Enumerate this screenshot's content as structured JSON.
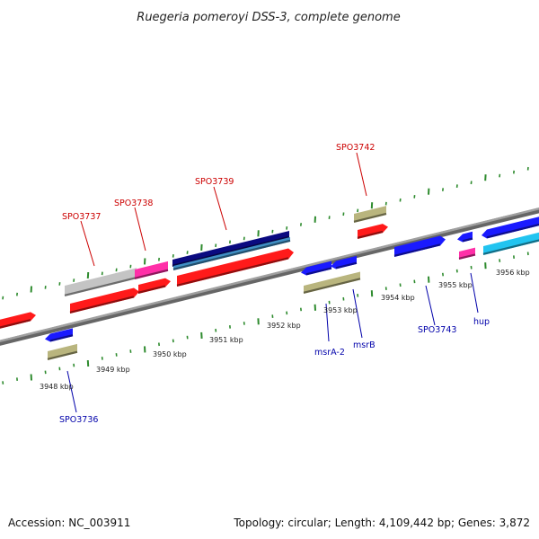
{
  "title": "Ruegeria pomeroyi DSS-3, complete genome",
  "footer": {
    "accession": "Accession: NC_003911",
    "summary": "Topology: circular; Length: 4,109,442 bp; Genes: 3,872"
  },
  "colors": {
    "backbone": "#8c8c8c",
    "tick": "#2e8b2e",
    "red": "#ff1a1a",
    "blue": "#1a1aff",
    "navy": "#0a0a80",
    "steel": "#3f8fc4",
    "grey": "#c4c4c4",
    "magenta": "#ff2fa8",
    "olive": "#b9b57e",
    "cyan": "#22c4f0",
    "label_red": "#cc0000",
    "label_blue": "#0000aa"
  },
  "scale_ticks": [
    "3948 kbp",
    "3949 kbp",
    "3950 kbp",
    "3951 kbp",
    "3952 kbp",
    "3953 kbp",
    "3954 kbp",
    "3955 kbp",
    "3956 kbp"
  ],
  "gene_labels": {
    "SPO3736": "SPO3736",
    "SPO3737": "SPO3737",
    "SPO3738": "SPO3738",
    "SPO3739": "SPO3739",
    "SPO3742": "SPO3742",
    "msrA2": "msrA-2",
    "msrB": "msrB",
    "SPO3743": "SPO3743",
    "hup": "hup"
  }
}
